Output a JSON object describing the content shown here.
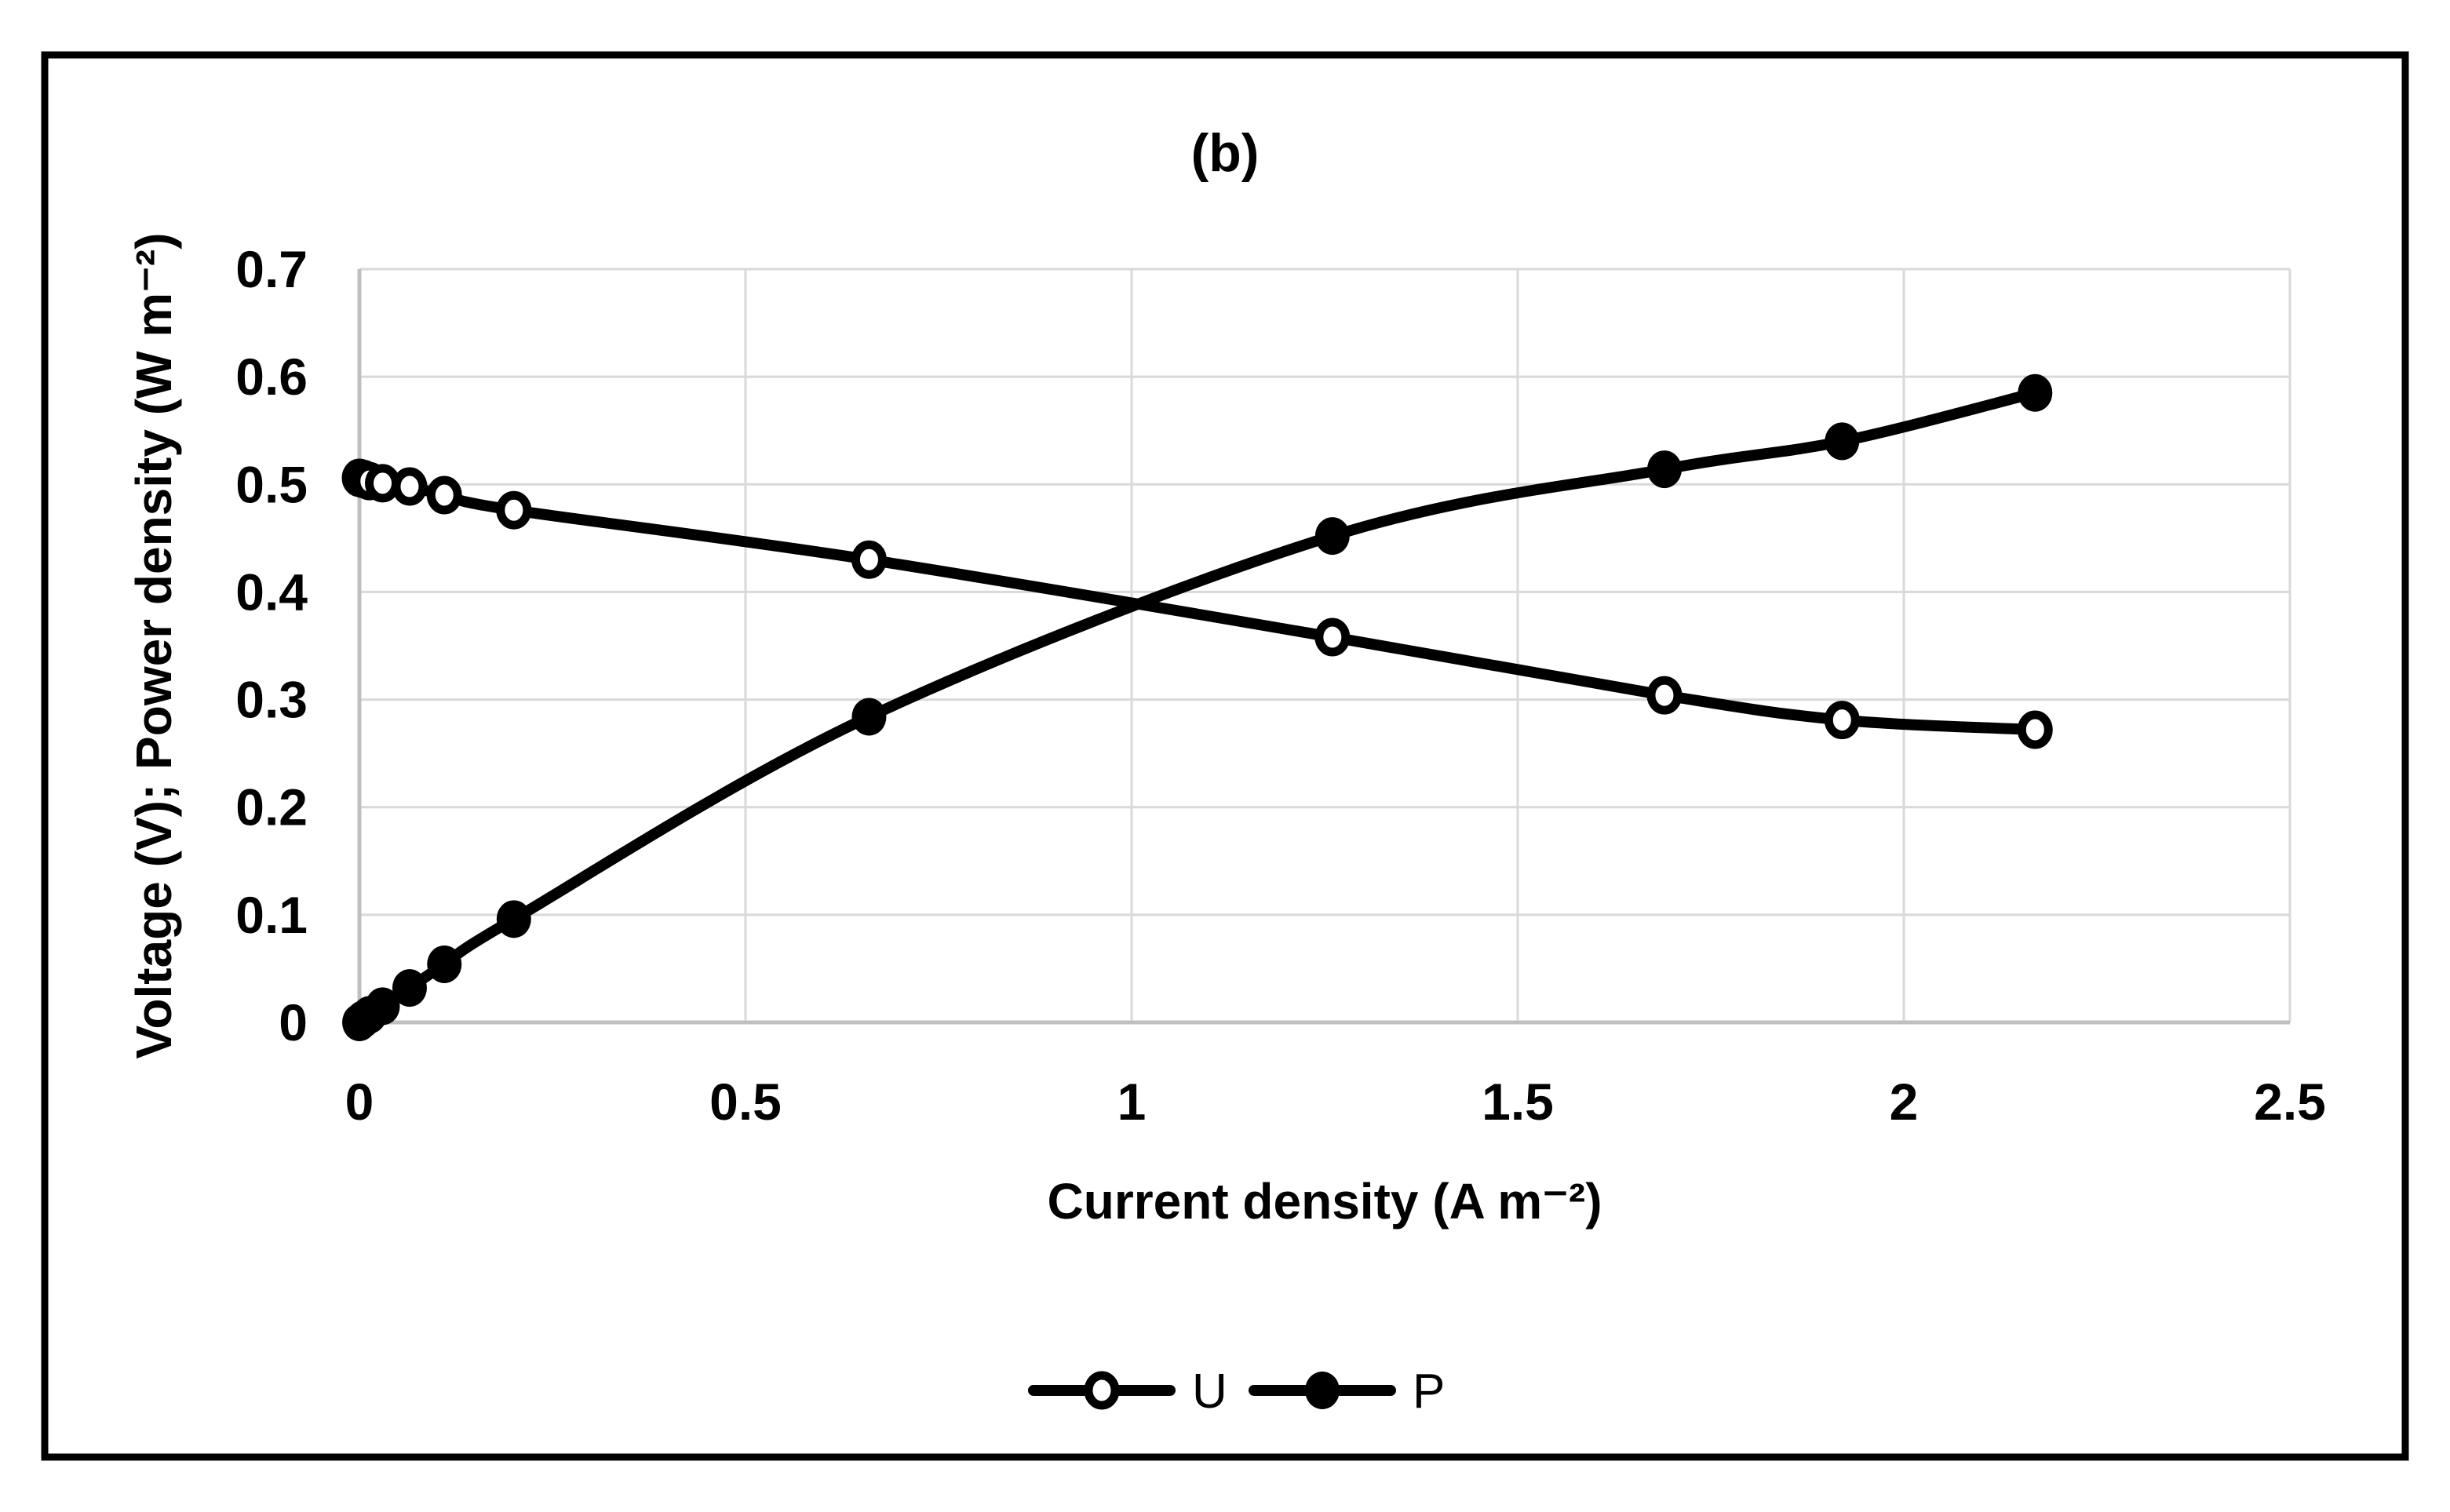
{
  "figure": {
    "title": "(b)"
  },
  "colors": {
    "background": "#ffffff",
    "frame": "#000000",
    "gridline": "#d9d9d9",
    "axis_line": "#bfbfbf",
    "series_line": "#000000",
    "open_marker_fill": "#ffffff",
    "filled_marker_fill": "#000000"
  },
  "chart_data": {
    "type": "line",
    "title": "(b)",
    "xlabel": "Current density (A m⁻²)",
    "ylabel": "Voltage (V); Power density (W m⁻²)",
    "xlim": [
      0,
      2.5
    ],
    "ylim": [
      0,
      0.7
    ],
    "x_ticks": [
      0,
      0.5,
      1,
      1.5,
      2,
      2.5
    ],
    "x_tick_labels": [
      "0",
      "0.5",
      "1",
      "1.5",
      "2",
      "2.5"
    ],
    "y_ticks": [
      0,
      0.1,
      0.2,
      0.3,
      0.4,
      0.5,
      0.6,
      0.7
    ],
    "y_tick_labels": [
      "0",
      "0.1",
      "0.2",
      "0.3",
      "0.4",
      "0.5",
      "0.6",
      "0.7"
    ],
    "grid": true,
    "legend_position": "bottom",
    "x": [
      0,
      0.005,
      0.013,
      0.03,
      0.065,
      0.11,
      0.2,
      0.66,
      1.26,
      1.69,
      1.92,
      2.17
    ],
    "series": [
      {
        "name": "U",
        "marker": "open-circle",
        "color": "#000000",
        "values": [
          0.506,
          0.505,
          0.503,
          0.501,
          0.498,
          0.49,
          0.476,
          0.43,
          0.358,
          0.304,
          0.281,
          0.272
        ]
      },
      {
        "name": "P",
        "marker": "filled-circle",
        "color": "#000000",
        "values": [
          0,
          0.003,
          0.007,
          0.015,
          0.032,
          0.054,
          0.096,
          0.284,
          0.452,
          0.514,
          0.54,
          0.585
        ]
      }
    ]
  }
}
